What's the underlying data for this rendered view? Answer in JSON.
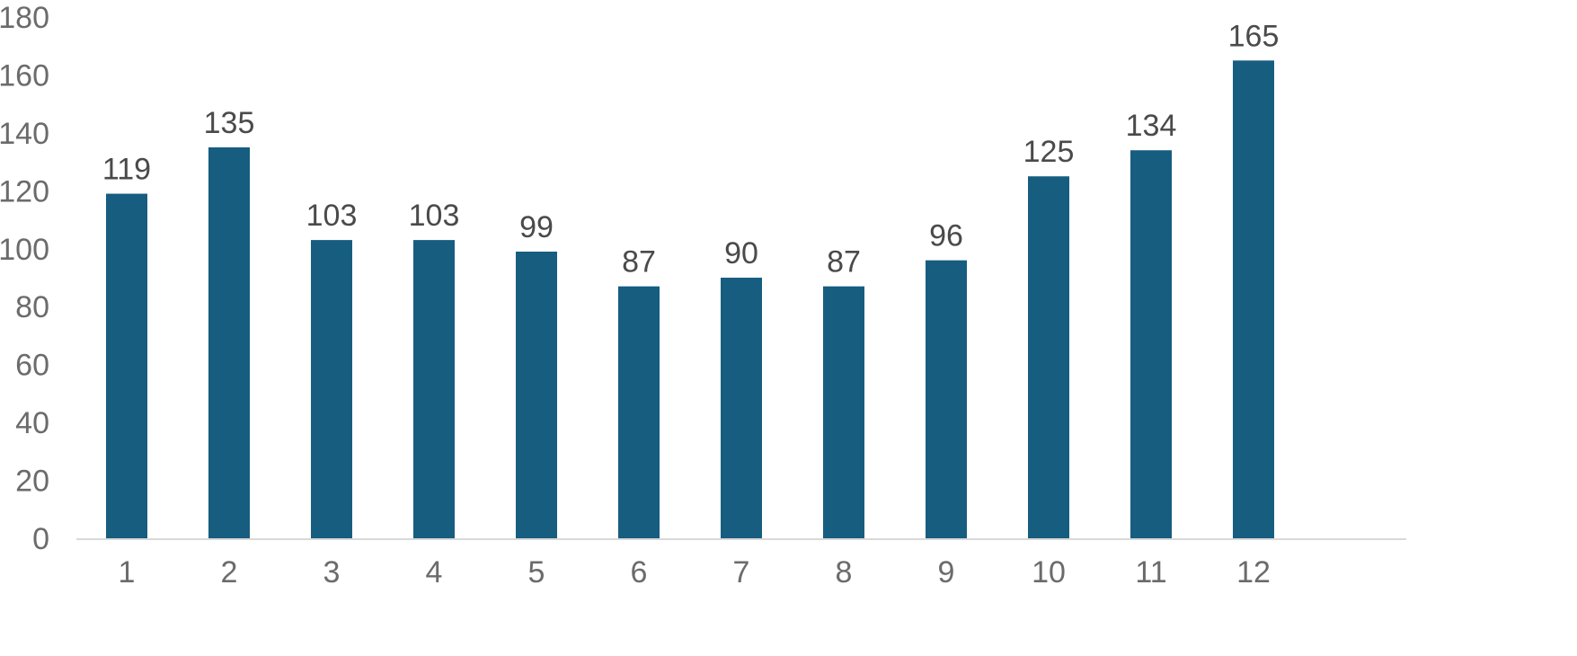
{
  "chart_data": {
    "type": "bar",
    "categories": [
      "1",
      "2",
      "3",
      "4",
      "5",
      "6",
      "7",
      "8",
      "9",
      "10",
      "11",
      "12"
    ],
    "values": [
      119,
      135,
      103,
      103,
      99,
      87,
      90,
      87,
      96,
      125,
      134,
      165
    ],
    "title": "",
    "xlabel": "",
    "ylabel": "",
    "ylim": [
      0,
      180
    ],
    "yticks": [
      0,
      20,
      40,
      60,
      80,
      100,
      120,
      140,
      160,
      180
    ],
    "grid": false,
    "legend": "none",
    "data_labels": true,
    "colors": {
      "bar": "#175d80",
      "axis": "#d9d9d9",
      "tick_text": "#6b6b6b",
      "label_text": "#4a4a4a"
    }
  }
}
